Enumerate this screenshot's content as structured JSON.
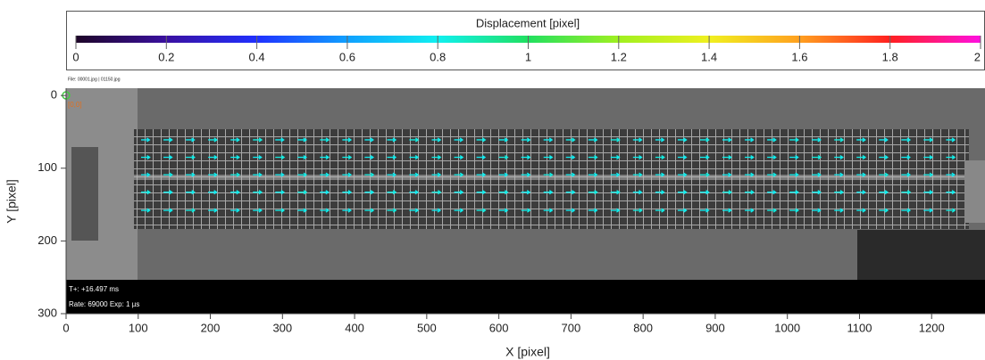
{
  "chart_data": {
    "type": "quiver",
    "colorbar": {
      "title": "Displacement [pixel]",
      "lim": [
        0,
        2
      ],
      "ticks": [
        0,
        0.2,
        0.4,
        0.6,
        0.8,
        1,
        1.2,
        1.4,
        1.6,
        1.8,
        2
      ],
      "colormap": [
        "#1e0528",
        "#3a10a0",
        "#2030ff",
        "#10a0ff",
        "#10f0f0",
        "#20e060",
        "#a0f020",
        "#f0f020",
        "#ffa020",
        "#ff2020",
        "#ff10e0"
      ]
    },
    "xlabel": "X [pixel]",
    "ylabel": "Y [pixel]",
    "xlim": [
      0,
      1274
    ],
    "ylim": [
      -10,
      300
    ],
    "xticks": [
      0,
      100,
      200,
      300,
      400,
      500,
      600,
      700,
      800,
      900,
      1000,
      1100,
      1200
    ],
    "yticks": [
      0,
      100,
      200,
      300
    ],
    "file_label": "File: 00001.jpg | 01150.jpg",
    "origin_label": "[0,0]",
    "time_label": "T+: +16.497 ms",
    "rate_label": "Rate: 69000  Exp:  1 µs",
    "x": [
      104,
      135,
      166,
      197,
      228,
      259,
      290,
      321,
      352,
      383,
      414,
      445,
      476,
      507,
      538,
      569,
      600,
      631,
      662,
      693,
      724,
      755,
      786,
      817,
      848,
      879,
      910,
      941,
      972,
      1003,
      1034,
      1065,
      1096,
      1127,
      1158,
      1189,
      1220
    ],
    "y": [
      61,
      85,
      109,
      133,
      158
    ],
    "values": [
      [
        0.78,
        0.8,
        0.79,
        0.81,
        0.8,
        0.82,
        0.79,
        0.8,
        0.81,
        0.8,
        0.79,
        0.8,
        0.82,
        0.8,
        0.79,
        0.81,
        0.8,
        0.8,
        0.79,
        0.81,
        0.8,
        0.82,
        0.8,
        0.79,
        0.8,
        0.81,
        0.8,
        0.79,
        0.8,
        0.81,
        0.8,
        0.82,
        0.8,
        0.79,
        0.8,
        0.81,
        0.8
      ],
      [
        0.8,
        0.79,
        0.81,
        0.8,
        0.8,
        0.79,
        0.82,
        0.8,
        0.8,
        0.81,
        0.79,
        0.8,
        0.8,
        0.81,
        0.8,
        0.79,
        0.82,
        0.8,
        0.8,
        0.79,
        0.81,
        0.8,
        0.8,
        0.82,
        0.79,
        0.8,
        0.81,
        0.8,
        0.8,
        0.79,
        0.82,
        0.8,
        0.81,
        0.8,
        0.79,
        0.8,
        0.81
      ],
      [
        0.79,
        0.81,
        0.8,
        0.8,
        0.82,
        0.8,
        0.79,
        0.81,
        0.8,
        0.8,
        0.82,
        0.79,
        0.8,
        0.8,
        0.81,
        0.8,
        0.79,
        0.8,
        0.82,
        0.8,
        0.8,
        0.79,
        0.81,
        0.8,
        0.8,
        0.82,
        0.79,
        0.8,
        0.81,
        0.8,
        0.8,
        0.79,
        0.8,
        0.82,
        0.8,
        0.81,
        0.79
      ],
      [
        0.81,
        0.8,
        0.8,
        0.79,
        0.8,
        0.81,
        0.8,
        0.82,
        0.79,
        0.8,
        0.8,
        0.81,
        0.79,
        0.82,
        0.8,
        0.8,
        0.81,
        0.79,
        0.8,
        0.8,
        0.82,
        0.81,
        0.79,
        0.8,
        0.8,
        0.8,
        0.82,
        0.81,
        0.79,
        0.8,
        0.8,
        0.81,
        0.79,
        0.8,
        0.82,
        0.8,
        0.8
      ],
      [
        0.8,
        0.8,
        0.82,
        0.8,
        0.79,
        0.8,
        0.81,
        0.8,
        0.8,
        0.79,
        0.81,
        0.82,
        0.8,
        0.79,
        0.8,
        0.82,
        0.8,
        0.81,
        0.8,
        0.79,
        0.8,
        0.8,
        0.82,
        0.81,
        0.8,
        0.79,
        0.8,
        0.8,
        0.82,
        0.81,
        0.79,
        0.8,
        0.8,
        0.81,
        0.8,
        0.79,
        0.82
      ]
    ]
  }
}
